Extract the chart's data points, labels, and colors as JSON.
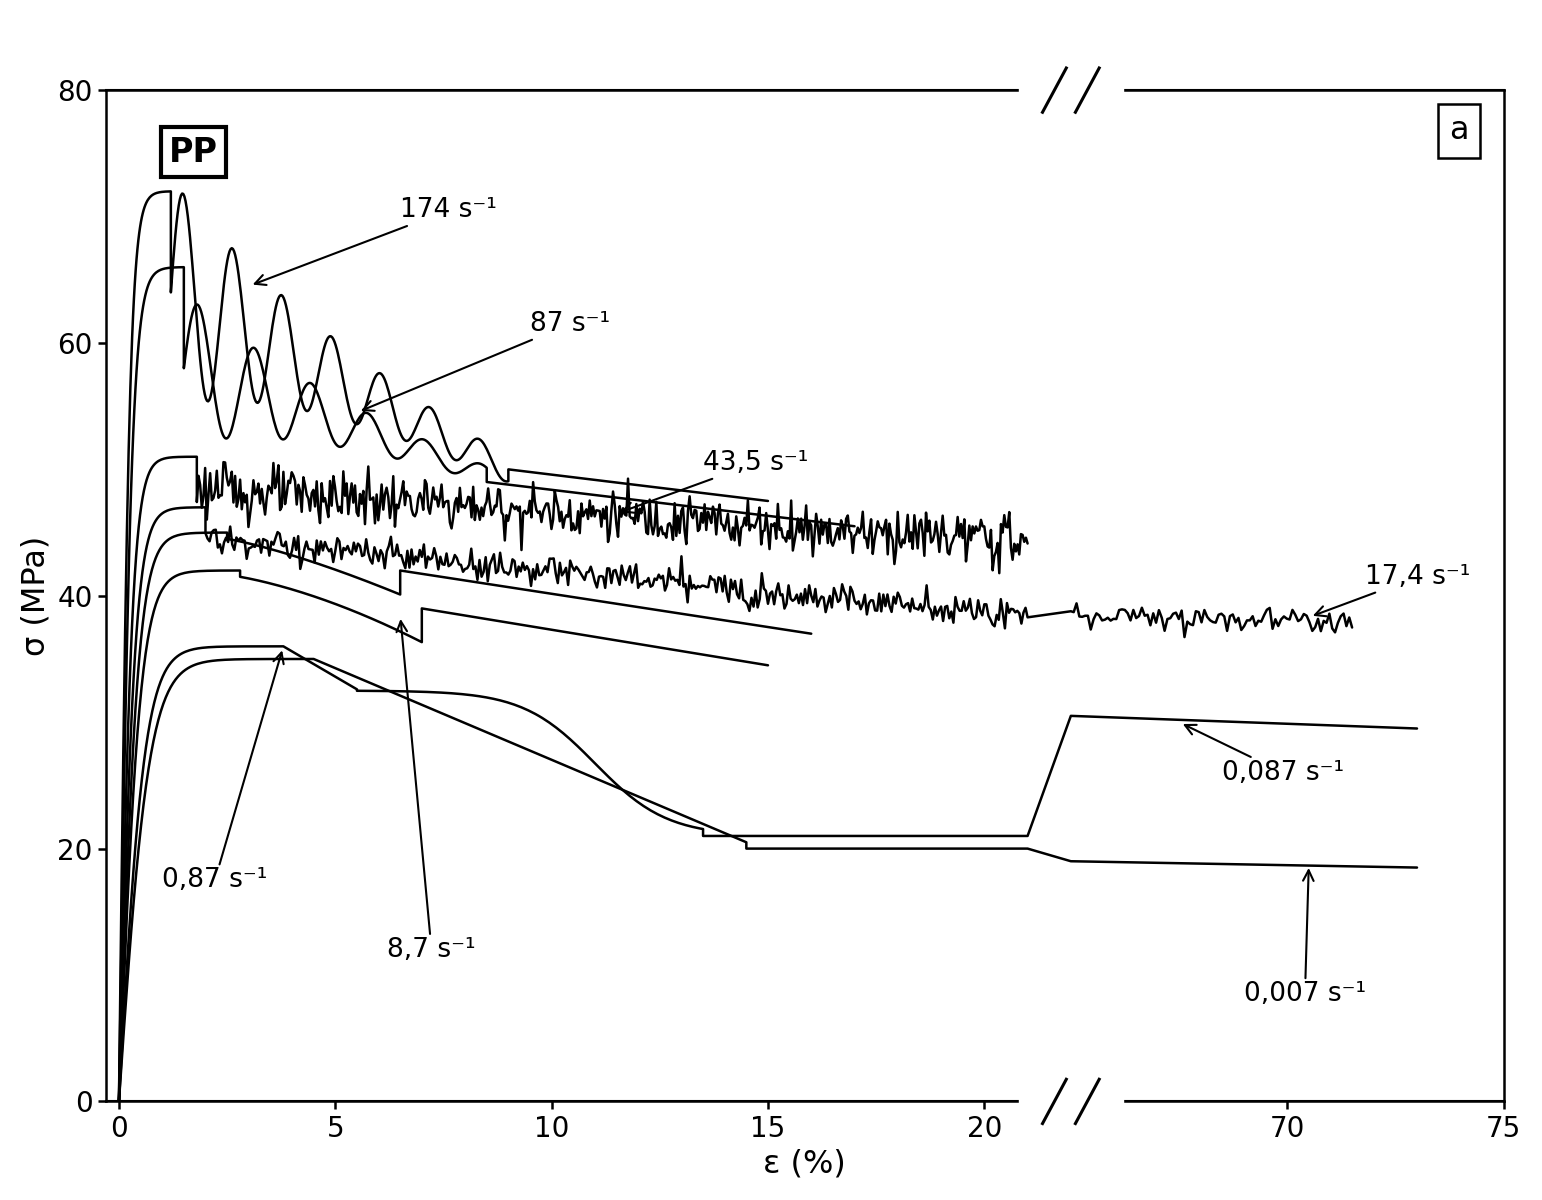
{
  "xlabel": "ε (%)",
  "ylabel": "σ (MPa)",
  "ylim": [
    0,
    80
  ],
  "background_color": "#ffffff",
  "annotation_fontsize": 19,
  "axis_fontsize": 23,
  "tick_fontsize": 20,
  "xticks_real": [
    0,
    5,
    10,
    15,
    20,
    70,
    75
  ],
  "yticks": [
    0,
    20,
    40,
    60,
    80
  ],
  "break_disp_x": 22.0,
  "break_real_after": 65,
  "disp_xlim": [
    -0.3,
    32
  ],
  "lw_main": 1.8
}
